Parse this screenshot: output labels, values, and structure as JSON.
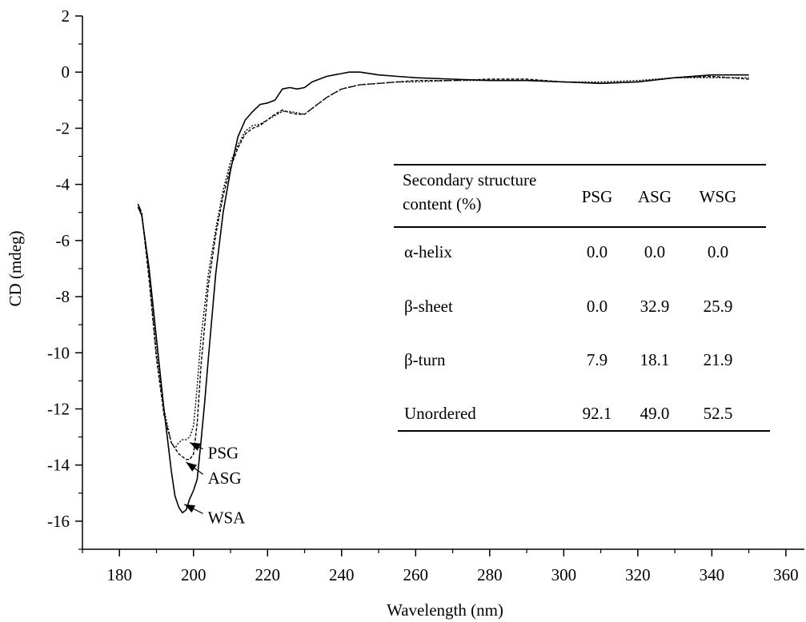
{
  "chart_data": {
    "type": "line",
    "xlabel": "Wavelength (nm)",
    "ylabel": "CD (mdeg)",
    "xlim": [
      170,
      365
    ],
    "ylim": [
      -17,
      2
    ],
    "xticks": [
      180,
      200,
      220,
      240,
      260,
      280,
      300,
      320,
      340,
      360
    ],
    "xtick_labels": [
      "180",
      "200",
      "220",
      "240",
      "260",
      "280",
      "300",
      "320",
      "340",
      "360"
    ],
    "yticks": [
      2,
      0,
      -2,
      -4,
      -6,
      -8,
      -10,
      -12,
      -14,
      -16
    ],
    "ytick_labels": [
      "2",
      "0",
      "-2",
      "-4",
      "-6",
      "-8",
      "-10",
      "-12",
      "-14",
      "-16"
    ],
    "grid": false,
    "series": [
      {
        "name": "PSG",
        "style": "dotted",
        "x": [
          185,
          186,
          188,
          190,
          192,
          194,
          195,
          196,
          197,
          198,
          199,
          200,
          201,
          202,
          204,
          206,
          208,
          210,
          212,
          214,
          216,
          218,
          220,
          222,
          224,
          226,
          228,
          230,
          232,
          234,
          236,
          238,
          240,
          245,
          250,
          255,
          260,
          270,
          280,
          290,
          300,
          310,
          320,
          330,
          340,
          350
        ],
        "y": [
          -4.7,
          -5.0,
          -7.2,
          -10.0,
          -12.0,
          -13.2,
          -13.4,
          -13.2,
          -13.1,
          -13.1,
          -13.0,
          -12.6,
          -11.2,
          -9.5,
          -7.2,
          -5.6,
          -4.2,
          -3.2,
          -2.6,
          -2.1,
          -1.9,
          -1.85,
          -1.7,
          -1.55,
          -1.4,
          -1.4,
          -1.45,
          -1.5,
          -1.3,
          -1.1,
          -0.9,
          -0.75,
          -0.6,
          -0.45,
          -0.4,
          -0.35,
          -0.35,
          -0.3,
          -0.3,
          -0.3,
          -0.35,
          -0.35,
          -0.3,
          -0.2,
          -0.2,
          -0.2
        ]
      },
      {
        "name": "ASG",
        "style": "dashed",
        "x": [
          185,
          186,
          188,
          190,
          192,
          194,
          195,
          196,
          197,
          198,
          199,
          200,
          201,
          202,
          204,
          206,
          208,
          210,
          212,
          214,
          216,
          218,
          220,
          222,
          224,
          226,
          228,
          230,
          232,
          234,
          236,
          238,
          240,
          245,
          250,
          255,
          260,
          270,
          280,
          290,
          300,
          310,
          320,
          330,
          340,
          350
        ],
        "y": [
          -4.7,
          -5.0,
          -7.4,
          -10.2,
          -12.2,
          -13.2,
          -13.4,
          -13.6,
          -13.7,
          -13.8,
          -13.8,
          -13.6,
          -12.5,
          -10.5,
          -7.6,
          -5.8,
          -4.4,
          -3.4,
          -2.7,
          -2.2,
          -2.0,
          -1.9,
          -1.7,
          -1.5,
          -1.35,
          -1.45,
          -1.5,
          -1.5,
          -1.3,
          -1.1,
          -0.9,
          -0.75,
          -0.6,
          -0.45,
          -0.4,
          -0.35,
          -0.3,
          -0.3,
          -0.25,
          -0.25,
          -0.35,
          -0.4,
          -0.35,
          -0.2,
          -0.15,
          -0.25
        ]
      },
      {
        "name": "WSA",
        "style": "solid",
        "x": [
          185,
          186,
          188,
          190,
          192,
          194,
          195,
          196,
          197,
          198,
          199,
          200,
          201,
          202,
          203,
          204,
          206,
          208,
          210,
          212,
          214,
          216,
          218,
          220,
          222,
          224,
          226,
          228,
          230,
          232,
          234,
          236,
          238,
          240,
          242,
          245,
          250,
          255,
          260,
          270,
          280,
          290,
          300,
          310,
          320,
          330,
          340,
          350
        ],
        "y": [
          -4.8,
          -5.1,
          -7.0,
          -9.5,
          -12.0,
          -14.2,
          -15.1,
          -15.5,
          -15.7,
          -15.6,
          -15.2,
          -14.9,
          -14.5,
          -13.2,
          -11.8,
          -10.2,
          -7.2,
          -5.0,
          -3.5,
          -2.3,
          -1.7,
          -1.4,
          -1.15,
          -1.1,
          -1.0,
          -0.6,
          -0.55,
          -0.6,
          -0.55,
          -0.35,
          -0.25,
          -0.15,
          -0.1,
          -0.05,
          0.0,
          0.0,
          -0.1,
          -0.15,
          -0.2,
          -0.25,
          -0.3,
          -0.3,
          -0.35,
          -0.4,
          -0.35,
          -0.2,
          -0.1,
          -0.1
        ]
      }
    ],
    "annotations": [
      {
        "text": "PSG",
        "arrow_to": {
          "x": 199,
          "y": -13.2
        },
        "label_at": {
          "x": 203,
          "y": -13.6
        }
      },
      {
        "text": "ASG",
        "arrow_to": {
          "x": 198,
          "y": -13.9
        },
        "label_at": {
          "x": 203,
          "y": -14.5
        }
      },
      {
        "text": "WSA",
        "arrow_to": {
          "x": 197.5,
          "y": -15.4
        },
        "label_at": {
          "x": 203,
          "y": -15.9
        }
      }
    ],
    "table": {
      "header": [
        "Secondary structure content (%)",
        "PSG",
        "ASG",
        "WSG"
      ],
      "header_lines": [
        "Secondary structure",
        "content (%)"
      ],
      "rows": [
        {
          "label": "α-helix",
          "values": [
            "0.0",
            "0.0",
            "0.0"
          ]
        },
        {
          "label": "β-sheet",
          "values": [
            "0.0",
            "32.9",
            "25.9"
          ]
        },
        {
          "label": "β-turn",
          "values": [
            "7.9",
            "18.1",
            "21.9"
          ]
        },
        {
          "label": "Unordered",
          "values": [
            "92.1",
            "49.0",
            "52.5"
          ]
        }
      ]
    }
  }
}
